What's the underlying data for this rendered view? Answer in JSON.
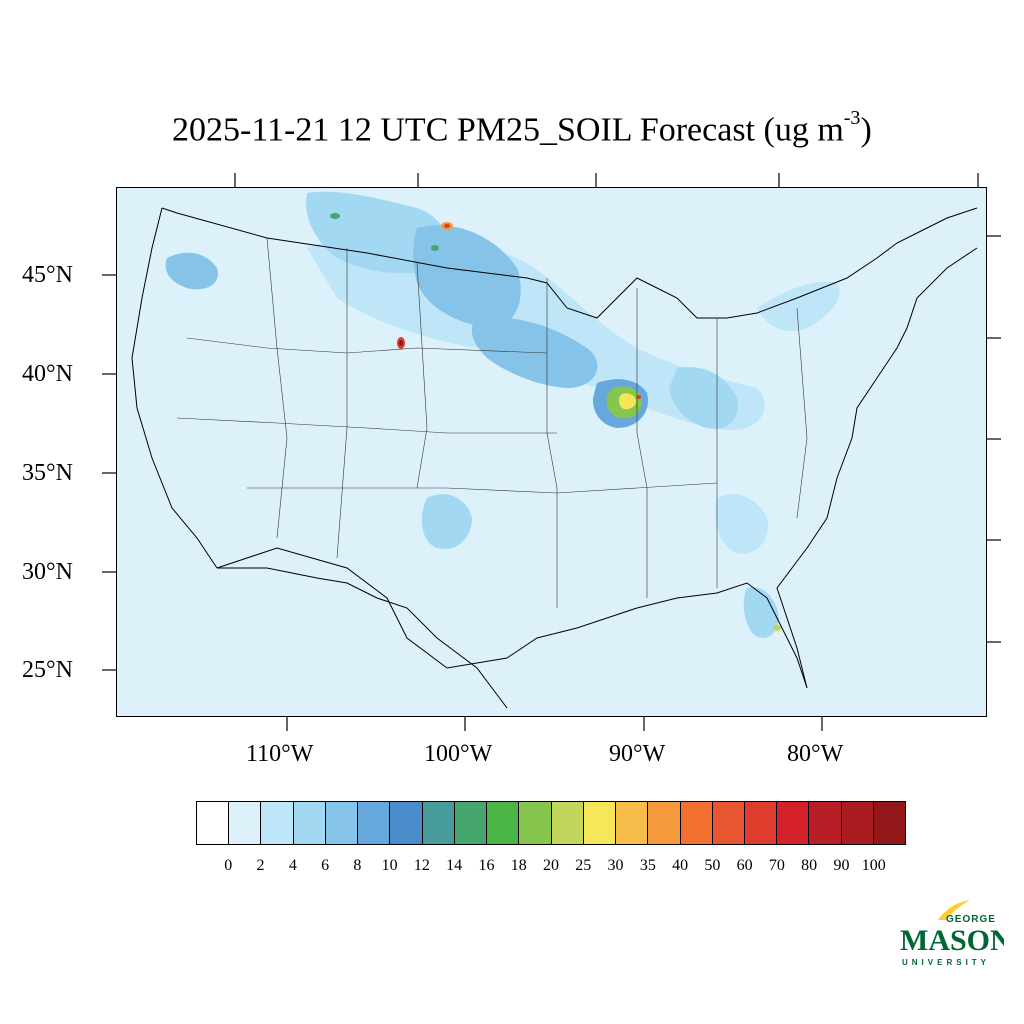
{
  "title": {
    "main": "2025-11-21 12 UTC PM25_SOIL Forecast (ug m",
    "exponent": "-3",
    "close": ")"
  },
  "lat_labels": [
    "45°N",
    "40°N",
    "35°N",
    "30°N",
    "25°N"
  ],
  "lon_labels": [
    "110°W",
    "100°W",
    "90°W",
    "80°W"
  ],
  "colorbar": {
    "labels": [
      "0",
      "2",
      "4",
      "6",
      "8",
      "10",
      "12",
      "14",
      "16",
      "18",
      "20",
      "25",
      "30",
      "35",
      "40",
      "50",
      "60",
      "70",
      "80",
      "90",
      "100"
    ],
    "colors": [
      "#ffffff",
      "#ddf1fb",
      "#bfe6f8",
      "#a3d8f3",
      "#86c3e8",
      "#67a8dc",
      "#4a8cca",
      "#479b9a",
      "#46a66e",
      "#4ab447",
      "#86c54e",
      "#c1d65a",
      "#f5e65a",
      "#f7bd4a",
      "#f59a3c",
      "#f2712f",
      "#e85530",
      "#de3c2c",
      "#d42029",
      "#b81c24",
      "#a81b21",
      "#911719"
    ]
  },
  "logo": {
    "line1": "GEORGE",
    "line2": "MASON",
    "line3": "UNIVERSITY",
    "green": "#006633",
    "gold": "#ffcc33"
  },
  "map_colors": {
    "ocean": "#ddf1fb",
    "land": "#ddf1fb",
    "c4": "#bfe6f8",
    "c6": "#a3d8f3",
    "c8": "#86c3e8",
    "c10": "#67a8dc",
    "c14": "#479b9a",
    "c18": "#4ab447",
    "c20": "#86c54e",
    "c25": "#c1d65a",
    "c30": "#f5e65a",
    "c40": "#f59a3c",
    "c70": "#de3c2c",
    "c100": "#911719"
  }
}
